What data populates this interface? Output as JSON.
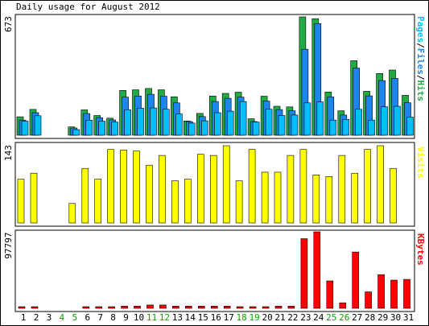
{
  "chart_data": [
    {
      "type": "bar",
      "title": "Daily usage for August 2012",
      "ymax_label": "673",
      "series_labels": [
        "Pages",
        "Files",
        "Hits"
      ],
      "categories": [
        "1",
        "2",
        "3",
        "4",
        "5",
        "6",
        "7",
        "8",
        "9",
        "10",
        "11",
        "12",
        "13",
        "14",
        "15",
        "16",
        "17",
        "18",
        "19",
        "20",
        "21",
        "22",
        "23",
        "24",
        "25",
        "26",
        "27",
        "28",
        "29",
        "30",
        "31"
      ],
      "weekend_days": [
        "4",
        "5",
        "11",
        "12",
        "18",
        "19",
        "25",
        "26"
      ],
      "ylim": [
        0,
        673
      ],
      "series": [
        {
          "name": "Hits",
          "color": "#22aa44",
          "values": [
            105,
            147,
            0,
            0,
            47,
            144,
            112,
            97,
            255,
            258,
            266,
            258,
            219,
            81,
            124,
            223,
            238,
            245,
            94,
            222,
            165,
            161,
            673,
            663,
            246,
            139,
            424,
            250,
            351,
            371,
            227
          ]
        },
        {
          "name": "Files",
          "color": "#1c86ee",
          "values": [
            86,
            128,
            0,
            0,
            41,
            123,
            100,
            87,
            217,
            223,
            233,
            222,
            184,
            78,
            106,
            192,
            210,
            217,
            78,
            194,
            146,
            139,
            489,
            635,
            218,
            115,
            382,
            224,
            311,
            323,
            185
          ]
        },
        {
          "name": "Pages",
          "color": "#00bfff",
          "values": [
            80,
            111,
            0,
            0,
            32,
            85,
            80,
            75,
            145,
            154,
            155,
            148,
            121,
            69,
            82,
            128,
            137,
            192,
            75,
            148,
            112,
            115,
            184,
            189,
            86,
            90,
            148,
            86,
            162,
            165,
            103
          ]
        }
      ]
    },
    {
      "type": "bar",
      "ymax_label": "143",
      "series_labels": [
        "Visits"
      ],
      "ylim": [
        0,
        143
      ],
      "series": [
        {
          "name": "Visits",
          "color": "#ffff00",
          "values": [
            81,
            92,
            0,
            0,
            36,
            101,
            81,
            136,
            135,
            133,
            107,
            125,
            78,
            81,
            127,
            125,
            143,
            78,
            136,
            94,
            94,
            125,
            136,
            89,
            86,
            125,
            92,
            136,
            143,
            101,
            0
          ]
        }
      ]
    },
    {
      "type": "bar",
      "ymax_label": "97797",
      "series_labels": [
        "KBytes"
      ],
      "ylim": [
        0,
        97797
      ],
      "series": [
        {
          "name": "KBytes",
          "color": "#ff0000",
          "values": [
            1400,
            1400,
            0,
            0,
            0,
            1400,
            1400,
            1400,
            2800,
            2800,
            4200,
            4200,
            2800,
            2800,
            2800,
            2800,
            2800,
            1400,
            1400,
            1400,
            2800,
            2800,
            89000,
            97797,
            35000,
            7000,
            72000,
            21000,
            43000,
            36000,
            37000
          ]
        }
      ]
    }
  ],
  "colors": {
    "weekday_label": "#000000",
    "weekend_label": "#00aa00",
    "frame": "#000000",
    "panel_fill": "#ffffff"
  }
}
